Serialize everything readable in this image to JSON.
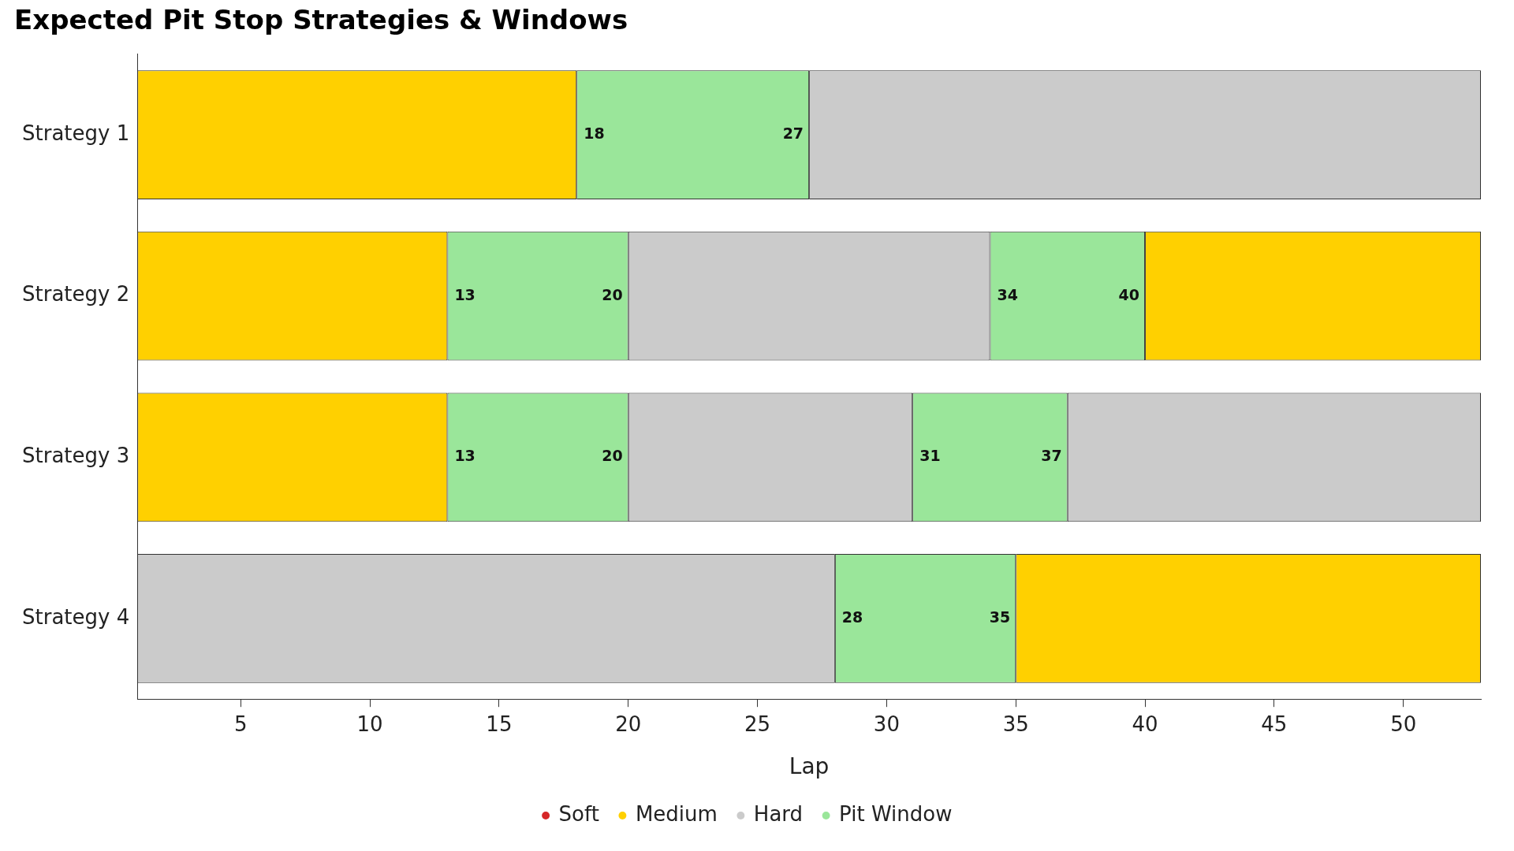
{
  "chart_data": {
    "type": "bar",
    "orientation": "horizontal",
    "title": "Expected Pit Stop Strategies & Windows",
    "xlabel": "Lap",
    "categories": [
      "Strategy 1",
      "Strategy 2",
      "Strategy 3",
      "Strategy 4"
    ],
    "series": [
      {
        "name": "Soft",
        "color": "#d62728",
        "values": [
          null,
          null,
          null,
          null
        ]
      },
      {
        "name": "Medium",
        "color": "#ffd000",
        "base": [
          1,
          1,
          1,
          35
        ],
        "values": [
          17,
          12,
          12,
          18
        ]
      },
      {
        "name": "Hard",
        "color": "#cbcbcb",
        "base": [
          27,
          20,
          20,
          1
        ],
        "values": [
          26,
          14,
          11,
          27
        ]
      },
      {
        "name": "Pit Window",
        "color": "#9ae69a",
        "base": [
          18,
          13,
          13,
          28
        ],
        "values": [
          9,
          7,
          7,
          7
        ]
      },
      {
        "color": "#9ae69a",
        "base": [
          null,
          34,
          31,
          null
        ],
        "values": [
          null,
          6,
          6,
          null
        ]
      },
      {
        "color": "#ffd000",
        "base": [
          null,
          40,
          null,
          null
        ],
        "values": [
          null,
          13,
          null,
          null
        ]
      },
      {
        "color": "#cbcbcb",
        "base": [
          null,
          null,
          37,
          null
        ],
        "values": [
          null,
          null,
          16,
          null
        ]
      }
    ],
    "xlim": [
      1,
      53
    ],
    "xticks": [
      5,
      10,
      15,
      20,
      25,
      30,
      35,
      40,
      45,
      50
    ],
    "grid": false,
    "legend": "bottom",
    "annotations": [
      {
        "text": "18",
        "x": 18,
        "y": "Strategy 1"
      },
      {
        "text": "27",
        "x": 27,
        "y": "Strategy 1"
      },
      {
        "text": "13",
        "x": 13,
        "y": "Strategy 2"
      },
      {
        "text": "20",
        "x": 20,
        "y": "Strategy 2"
      },
      {
        "text": "34",
        "x": 34,
        "y": "Strategy 2"
      },
      {
        "text": "40",
        "x": 40,
        "y": "Strategy 2"
      },
      {
        "text": "13",
        "x": 13,
        "y": "Strategy 3"
      },
      {
        "text": "20",
        "x": 20,
        "y": "Strategy 3"
      },
      {
        "text": "31",
        "x": 31,
        "y": "Strategy 3"
      },
      {
        "text": "37",
        "x": 37,
        "y": "Strategy 3"
      },
      {
        "text": "28",
        "x": 28,
        "y": "Strategy 4"
      },
      {
        "text": "35",
        "x": 35,
        "y": "Strategy 4"
      }
    ]
  }
}
